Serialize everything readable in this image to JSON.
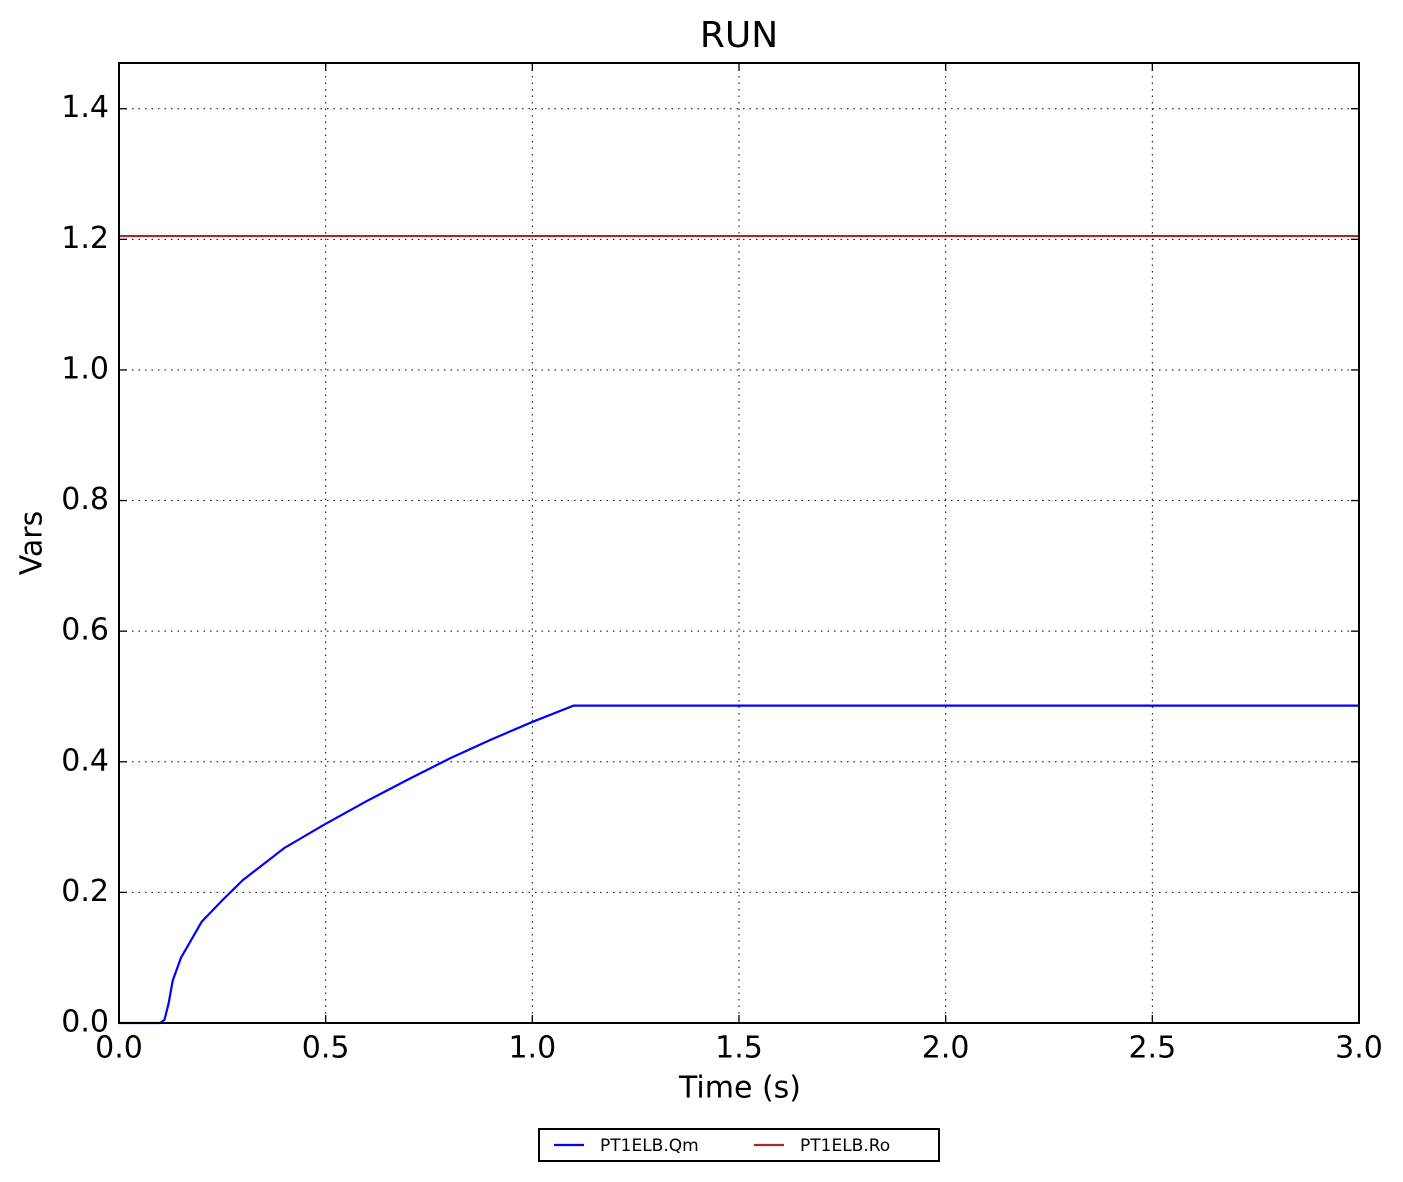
{
  "chart_data": {
    "type": "line",
    "title": "RUN",
    "x_label": "Time (s)",
    "y_label": "Vars",
    "x": [
      0,
      0.1,
      0.11,
      0.12,
      0.13,
      0.15,
      0.2,
      0.25,
      0.3,
      0.4,
      0.5,
      0.6,
      0.7,
      0.8,
      0.9,
      1.0,
      1.1,
      3.0
    ],
    "series": [
      {
        "name": "PT1ELB.Qm",
        "color": "#0000ff",
        "values": [
          0,
          0,
          0.005,
          0.03,
          0.065,
          0.1,
          0.155,
          0.188,
          0.219,
          0.268,
          0.305,
          0.34,
          0.373,
          0.405,
          0.434,
          0.461,
          0.486,
          0.486
        ]
      },
      {
        "name": "PT1ELB.Ro",
        "color": "#a52a2a",
        "values": [
          1.205,
          1.205,
          1.205,
          1.205,
          1.205,
          1.205,
          1.205,
          1.205,
          1.205,
          1.205,
          1.205,
          1.205,
          1.205,
          1.205,
          1.205,
          1.205,
          1.205,
          1.205
        ]
      }
    ],
    "xlim": [
      0,
      3
    ],
    "ylim": [
      0,
      1.47
    ],
    "xticks": [
      {
        "value": 0,
        "label": "0.0"
      },
      0.5,
      {
        "value": 1,
        "label": "1.0"
      },
      1.5,
      {
        "value": 2,
        "label": "2.0"
      },
      2.5,
      {
        "value": 3,
        "label": "3.0"
      }
    ],
    "yticks": [
      {
        "value": 0,
        "label": "0.0"
      },
      0.2,
      0.4,
      0.6,
      0.8,
      {
        "value": 1,
        "label": "1.0"
      },
      1.2,
      1.4
    ],
    "grid": true,
    "legend": "below"
  }
}
